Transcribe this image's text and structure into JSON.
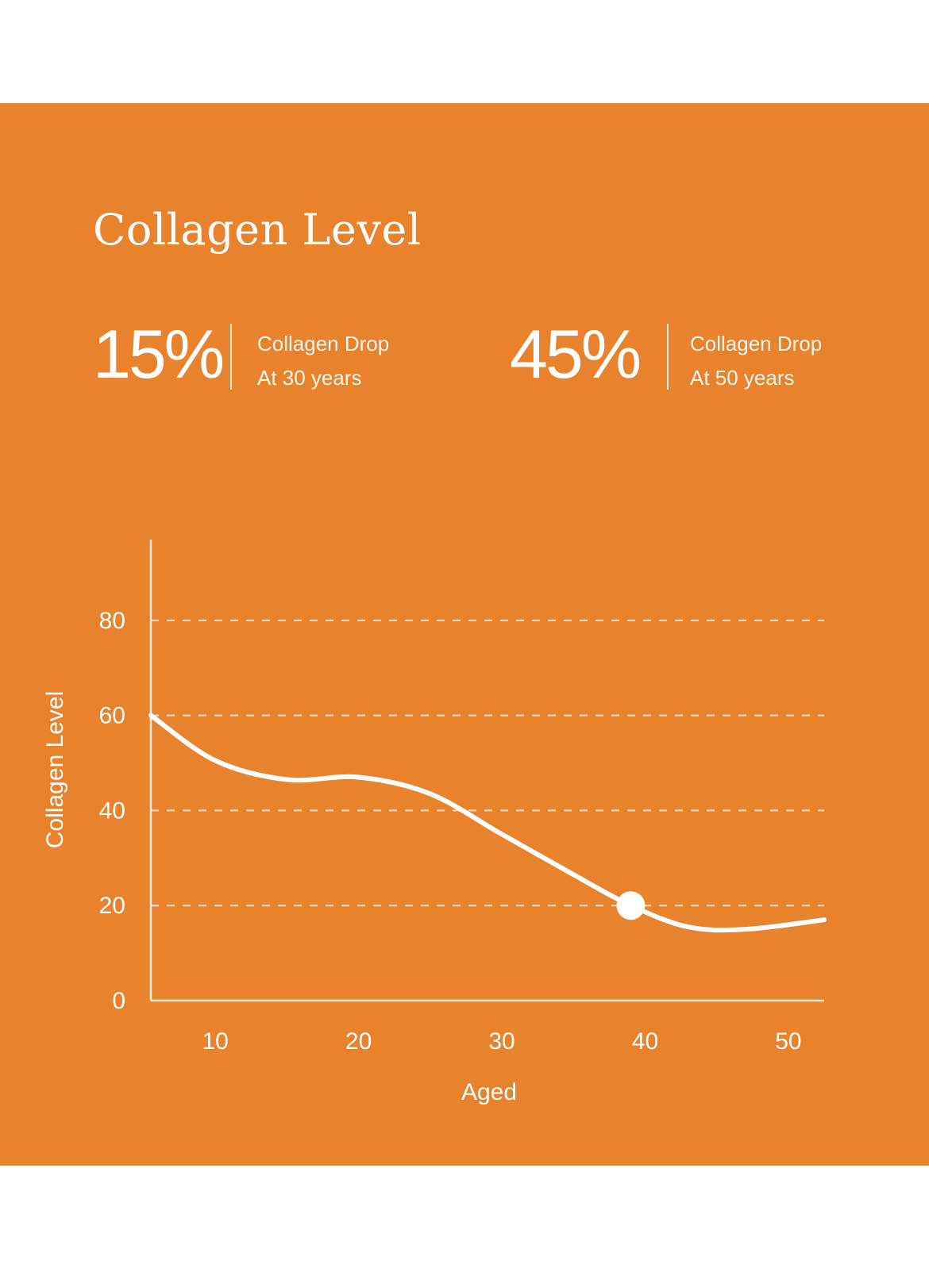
{
  "title": "Collagen Level",
  "stats": [
    {
      "value": "15%",
      "line1": "Collagen Drop",
      "line2": "At 30 years"
    },
    {
      "value": "45%",
      "line1": "Collagen Drop",
      "line2": "At 50 years"
    }
  ],
  "colors": {
    "background": "#E8822C",
    "foreground": "#FFFFFF"
  },
  "chart_data": {
    "type": "line",
    "xlabel": "Aged",
    "ylabel": "Collagen Level",
    "x_ticks": [
      10,
      20,
      30,
      40,
      50
    ],
    "y_ticks": [
      0,
      20,
      40,
      60,
      80
    ],
    "xlim": [
      5.5,
      52.5
    ],
    "ylim": [
      0,
      97
    ],
    "grid": "dashed horizontal",
    "series": [
      {
        "x": [
          5.5,
          10,
          15,
          20,
          25,
          30,
          35,
          39,
          43,
          47,
          52.5
        ],
        "y": [
          60,
          50.5,
          46.5,
          47,
          43.5,
          35,
          26.5,
          20,
          15.5,
          15,
          17
        ]
      }
    ],
    "highlight_point": {
      "x": 39,
      "y": 20
    }
  }
}
